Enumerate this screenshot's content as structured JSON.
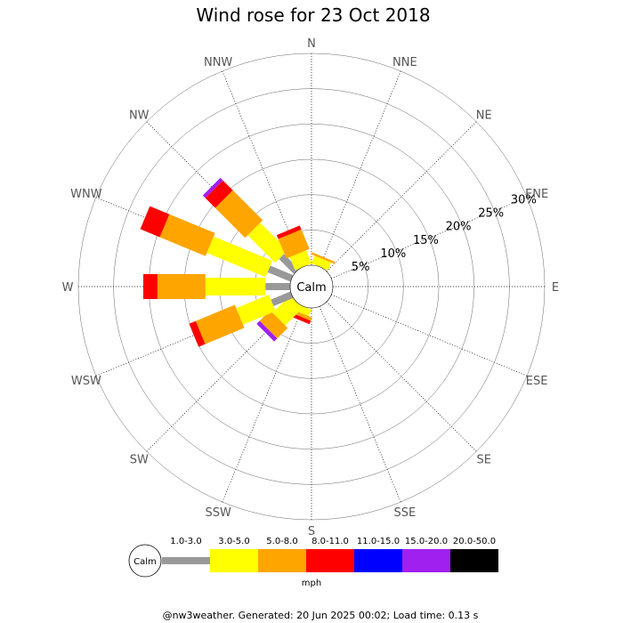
{
  "chart_data": {
    "type": "wind-rose",
    "title": "Wind rose for 23 Oct 2018",
    "directions": [
      "N",
      "NNE",
      "NE",
      "ENE",
      "E",
      "ESE",
      "SE",
      "SSE",
      "S",
      "SSW",
      "SW",
      "WSW",
      "W",
      "WNW",
      "NW",
      "NNW"
    ],
    "ring_labels": [
      "5%",
      "10%",
      "15%",
      "20%",
      "25%",
      "30%"
    ],
    "ring_values": [
      5,
      10,
      15,
      20,
      25,
      30
    ],
    "rmax": 30,
    "calm_label": "Calm",
    "speed_unit": "mph",
    "speed_bins": [
      {
        "label": "1.0-3.0",
        "color": "#999999"
      },
      {
        "label": "3.0-5.0",
        "color": "#ffff00"
      },
      {
        "label": "5.0-8.0",
        "color": "#ffa500"
      },
      {
        "label": "8.0-11.0",
        "color": "#ff0000"
      },
      {
        "label": "11.0-15.0",
        "color": "#0000ff"
      },
      {
        "label": "15.0-20.0",
        "color": "#a020f0"
      },
      {
        "label": "20.0-50.0",
        "color": "#000000"
      }
    ],
    "series_cumulative_percent": {
      "N": [
        0,
        0,
        0,
        0,
        0,
        0,
        0
      ],
      "NNE": [
        0,
        1.2,
        1.5,
        0,
        0,
        0,
        0
      ],
      "NE": [
        0,
        0,
        0,
        0,
        0,
        0,
        0
      ],
      "ENE": [
        0,
        0,
        0,
        0,
        0,
        0,
        0
      ],
      "E": [
        0,
        0,
        0,
        0,
        0,
        0,
        0
      ],
      "ESE": [
        0,
        0,
        0,
        0,
        0,
        0,
        0
      ],
      "SE": [
        0,
        0,
        0,
        0,
        0,
        0,
        0
      ],
      "SSE": [
        0,
        0,
        0,
        0,
        0,
        0,
        0
      ],
      "S": [
        0,
        0,
        0,
        0,
        0,
        0,
        0
      ],
      "SSW": [
        0,
        1.0,
        1.5,
        2.0,
        0,
        0,
        0
      ],
      "SW": [
        0,
        3.5,
        5.6,
        0,
        0,
        6.2,
        0
      ],
      "WSW": [
        3.0,
        8.0,
        14.0,
        15.0,
        0,
        0,
        0
      ],
      "W": [
        3.5,
        12.0,
        18.8,
        20.8,
        0,
        0,
        0
      ],
      "WNW": [
        3.5,
        12.5,
        19.5,
        22.5,
        0,
        0,
        0
      ],
      "NW": [
        3.0,
        8.5,
        14.5,
        16.5,
        0,
        17.0,
        0
      ],
      "NNW": [
        0,
        2.0,
        5.0,
        5.6,
        0,
        0,
        0
      ]
    }
  },
  "footer_text": "@nw3weather. Generated: 20 Jun 2025 00:02; Load time: 0.13 s"
}
